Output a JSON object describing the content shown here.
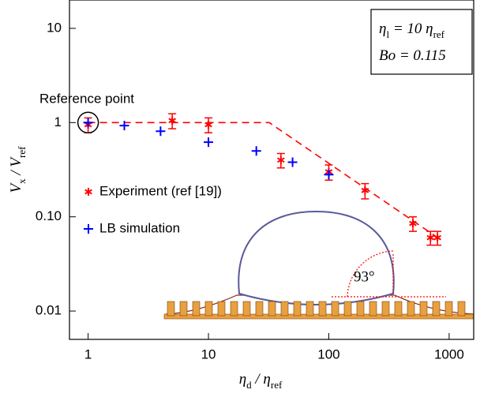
{
  "chart_data": {
    "type": "scatter",
    "log_x": true,
    "log_y": true,
    "xlabel": [
      "η",
      "d",
      " / η",
      "ref"
    ],
    "ylabel": [
      "V",
      "x",
      " / V",
      "ref"
    ],
    "xlim": [
      0.7,
      1600
    ],
    "ylim": [
      0.005,
      20
    ],
    "xticks": [
      1,
      10,
      100,
      1000
    ],
    "yticks": [
      10,
      1,
      {
        "value": 0.1,
        "label": "0.10"
      },
      0.01
    ],
    "series": [
      {
        "name": "Experiment (ref [19])",
        "color": "#ff0000",
        "marker": "star",
        "x": [
          1,
          5,
          10,
          40,
          100,
          200,
          500,
          700,
          800
        ],
        "values": [
          0.95,
          1.05,
          0.95,
          0.4,
          0.3,
          0.19,
          0.085,
          0.06,
          0.06
        ],
        "errors": [
          0.17,
          0.19,
          0.17,
          0.07,
          0.055,
          0.035,
          0.015,
          0.01,
          0.01
        ]
      },
      {
        "name": "LB simulation",
        "color": "#0000ff",
        "marker": "plus",
        "x": [
          1,
          2,
          4,
          10,
          25,
          50,
          100
        ],
        "values": [
          1.0,
          0.93,
          0.81,
          0.62,
          0.5,
          0.38,
          0.28
        ]
      }
    ],
    "line": {
      "x": [
        1,
        32,
        870
      ],
      "values": [
        1,
        1,
        0.056
      ],
      "color": "#ff0000",
      "dashed": true
    },
    "annotation_box": [
      [
        "η",
        "l",
        " = 10 η",
        "ref"
      ],
      [
        "Bo",
        "",
        " = 0.115",
        ""
      ]
    ],
    "reference_label": "Reference point",
    "reference_point": {
      "x": 1,
      "y": 1
    },
    "angle_label": "93°"
  }
}
